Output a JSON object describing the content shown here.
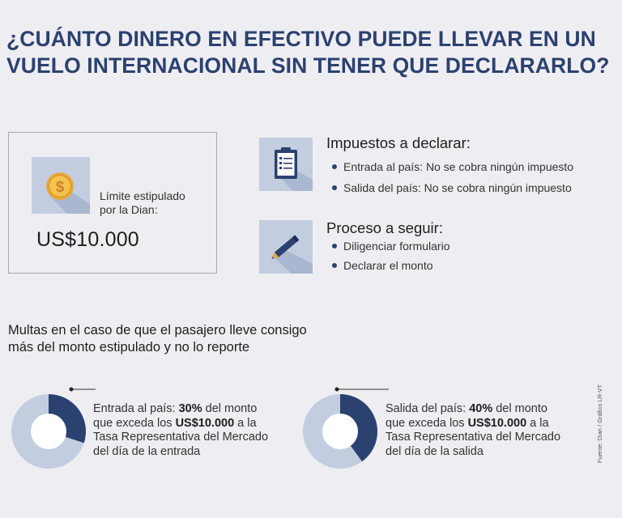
{
  "title": {
    "line1": "¿CUÁNTO DINERO EN EFECTIVO PUEDE LLEVAR EN UN",
    "line2": "VUELO INTERNACIONAL SIN TENER QUE DECLARARLO?"
  },
  "limit": {
    "label_line1": "Límite estipulado",
    "label_line2": "por la Dian:",
    "value": "US$10.000",
    "icon": "dollar-coin-icon"
  },
  "taxes": {
    "heading": "Impuestos a declarar:",
    "icon": "clipboard-icon",
    "items": [
      "Entrada al país: No se cobra ningún  impuesto",
      "Salida del país: No se cobra ningún  impuesto"
    ]
  },
  "process": {
    "heading": "Proceso a seguir:",
    "icon": "pencil-icon",
    "items": [
      "Diligenciar formulario",
      "Declarar el monto"
    ]
  },
  "fines": {
    "heading_line1": "Multas en el caso de que el pasajero lleve consigo",
    "heading_line2": "más del monto estipulado y no lo reporte",
    "entry": {
      "percent": 30,
      "prefix": "Entrada al país: ",
      "percent_label": "30%",
      "mid": " del monto que exceda los ",
      "amount": "US$10.000",
      "suffix": " a la Tasa Representativa del Mercado del día de la entrada"
    },
    "exit": {
      "percent": 40,
      "prefix": "Salida del país: ",
      "percent_label": "40%",
      "mid": " del monto que exceda los ",
      "amount": "US$10.000",
      "suffix": " a la Tasa Representativa del Mercado del día de la salida"
    }
  },
  "colors": {
    "accent": "#2b4170",
    "light": "#c3cde0",
    "background": "#eeeef2"
  },
  "source": "Fuente: Dian / Gráfico LR-VT"
}
